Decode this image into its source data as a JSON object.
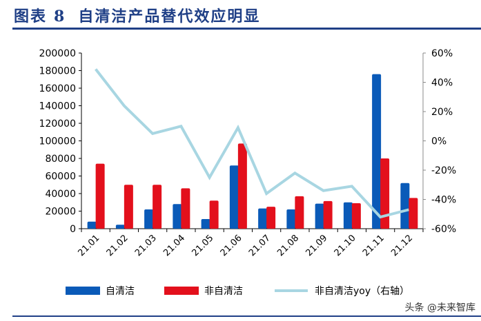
{
  "header": {
    "title_prefix": "图表",
    "title_number": "8",
    "title_text": "自清洁产品替代效应明显"
  },
  "watermark": "头条 @未来智库",
  "chart_data": {
    "type": "bar+line",
    "categories": [
      "21.01",
      "21.02",
      "21.03",
      "21.04",
      "21.05",
      "21.06",
      "21.07",
      "21.08",
      "21.09",
      "21.10",
      "21.11",
      "21.12"
    ],
    "series": [
      {
        "name": "自清洁",
        "type": "bar",
        "axis": "left",
        "color": "#0a5ab8",
        "values": [
          8000,
          4500,
          22000,
          28000,
          11000,
          72000,
          23000,
          22000,
          28500,
          30000,
          176000,
          52000
        ]
      },
      {
        "name": "非自清洁",
        "type": "bar",
        "axis": "left",
        "color": "#e3101c",
        "values": [
          74000,
          50000,
          50000,
          46000,
          32000,
          97000,
          25000,
          37000,
          31500,
          29000,
          80000,
          35000
        ]
      },
      {
        "name": "非自清洁yoy（右轴）",
        "type": "line",
        "axis": "right",
        "color": "#a8d6e2",
        "values": [
          49,
          24,
          5,
          10,
          -25,
          9,
          -36,
          -22,
          -34,
          -31,
          -52,
          -47
        ]
      }
    ],
    "y_left": {
      "range": [
        0,
        200000
      ],
      "ticks": [
        "0",
        "20000",
        "40000",
        "60000",
        "80000",
        "100000",
        "120000",
        "140000",
        "160000",
        "180000",
        "200000"
      ]
    },
    "y_right": {
      "range": [
        -60,
        60
      ],
      "unit": "%",
      "ticks": [
        "-60%",
        "-40%",
        "-20%",
        "0%",
        "20%",
        "40%",
        "60%"
      ]
    },
    "legend": "bottom",
    "grid": false
  }
}
